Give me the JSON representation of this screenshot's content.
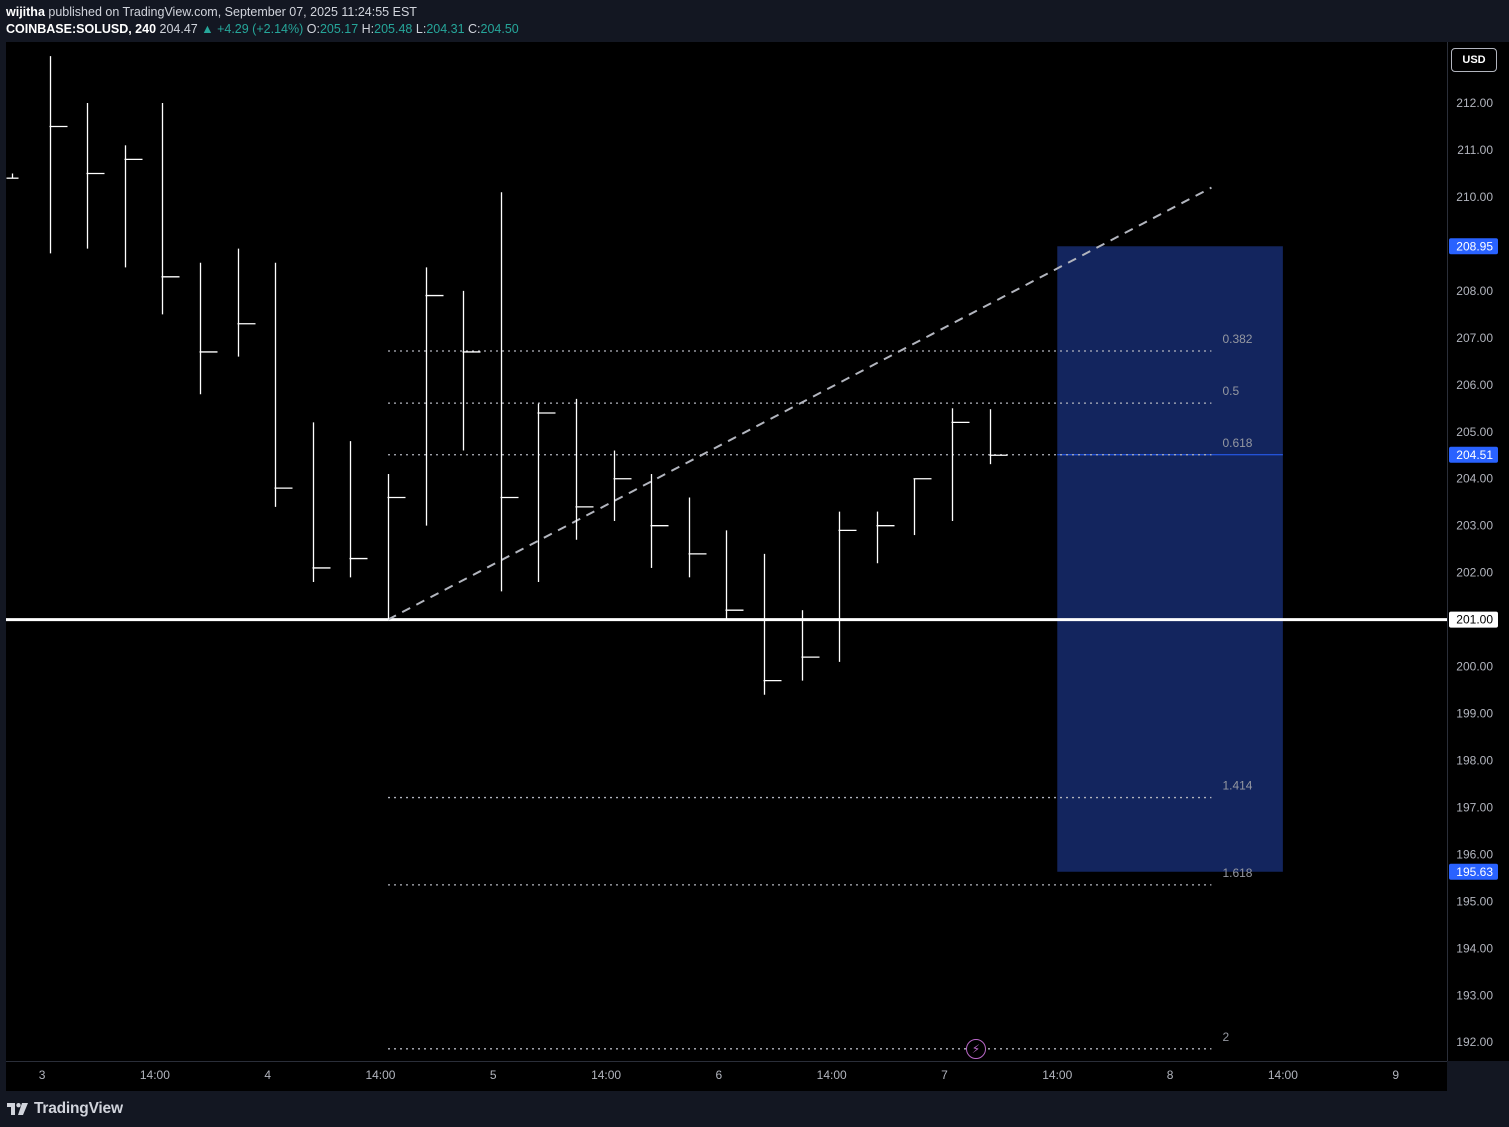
{
  "header": {
    "publisher": "wijitha",
    "published_text": "published on TradingView.com, September 07, 2025 11:24:55 EST",
    "symbol": "COINBASE:SOLUSD, 240",
    "last": "204.47",
    "change": "▲ +4.29 (+2.14%)",
    "open_label": "O:",
    "open": "205.17",
    "high_label": "H:",
    "high": "205.48",
    "low_label": "L:",
    "low": "204.31",
    "close_label": "C:",
    "close": "204.50"
  },
  "currency_button": "USD",
  "footer": {
    "brand": "TradingView"
  },
  "colors": {
    "background": "#000000",
    "bars": "#ffffff",
    "axis_text": "#b2b5be",
    "price_tag": "#2962ff",
    "zone_fill": "#13255e",
    "fib_text": "#9598a1",
    "accent_purple": "#ba68c8"
  },
  "icons": {
    "alert": "lightning-icon",
    "logo": "tradingview-logo-icon"
  },
  "chart_data": {
    "type": "ohlc",
    "timeframe": "240",
    "ylim": [
      191.6,
      213.3
    ],
    "y_ticks": [
      192,
      193,
      194,
      195,
      196,
      197,
      198,
      199,
      200,
      201,
      202,
      203,
      204,
      205,
      206,
      207,
      208,
      209,
      210,
      211,
      212,
      213
    ],
    "x_ticks": [
      {
        "bar": 0.8,
        "label": "3"
      },
      {
        "bar": 3.8,
        "label": "14:00"
      },
      {
        "bar": 6.8,
        "label": "4"
      },
      {
        "bar": 9.8,
        "label": "14:00"
      },
      {
        "bar": 12.8,
        "label": "5"
      },
      {
        "bar": 15.8,
        "label": "14:00"
      },
      {
        "bar": 18.8,
        "label": "6"
      },
      {
        "bar": 21.8,
        "label": "14:00"
      },
      {
        "bar": 24.8,
        "label": "7"
      },
      {
        "bar": 27.8,
        "label": "14:00"
      },
      {
        "bar": 30.8,
        "label": "8"
      },
      {
        "bar": 33.8,
        "label": "14:00"
      },
      {
        "bar": 36.8,
        "label": "9"
      }
    ],
    "bars": [
      {
        "o": 210.5,
        "h": 210.5,
        "l": 210.4,
        "c": 210.4
      },
      {
        "o": 211.5,
        "h": 213.0,
        "l": 208.8,
        "c": 211.5
      },
      {
        "o": 211.5,
        "h": 212.0,
        "l": 208.9,
        "c": 210.5
      },
      {
        "o": 210.8,
        "h": 211.1,
        "l": 208.5,
        "c": 210.8
      },
      {
        "o": 211.0,
        "h": 212.0,
        "l": 207.5,
        "c": 208.3
      },
      {
        "o": 208.3,
        "h": 208.6,
        "l": 205.8,
        "c": 206.7
      },
      {
        "o": 206.8,
        "h": 208.9,
        "l": 206.6,
        "c": 207.3
      },
      {
        "o": 207.3,
        "h": 208.6,
        "l": 203.4,
        "c": 203.8
      },
      {
        "o": 203.9,
        "h": 205.2,
        "l": 201.8,
        "c": 202.1
      },
      {
        "o": 202.1,
        "h": 204.8,
        "l": 201.9,
        "c": 202.3
      },
      {
        "o": 202.3,
        "h": 204.1,
        "l": 201.0,
        "c": 203.6
      },
      {
        "o": 203.6,
        "h": 208.5,
        "l": 203.0,
        "c": 207.9
      },
      {
        "o": 207.9,
        "h": 208.0,
        "l": 204.6,
        "c": 206.7
      },
      {
        "o": 206.7,
        "h": 210.1,
        "l": 201.6,
        "c": 203.6
      },
      {
        "o": 203.6,
        "h": 205.6,
        "l": 201.8,
        "c": 205.4
      },
      {
        "o": 205.4,
        "h": 205.7,
        "l": 202.7,
        "c": 203.4
      },
      {
        "o": 203.4,
        "h": 204.6,
        "l": 203.1,
        "c": 204.0
      },
      {
        "o": 204.0,
        "h": 204.1,
        "l": 202.1,
        "c": 203.0
      },
      {
        "o": 203.0,
        "h": 203.6,
        "l": 201.9,
        "c": 202.4
      },
      {
        "o": 202.4,
        "h": 202.9,
        "l": 201.0,
        "c": 201.2
      },
      {
        "o": 201.2,
        "h": 202.4,
        "l": 199.4,
        "c": 199.7
      },
      {
        "o": 199.7,
        "h": 201.2,
        "l": 199.7,
        "c": 200.2
      },
      {
        "o": 200.2,
        "h": 203.3,
        "l": 200.1,
        "c": 202.9
      },
      {
        "o": 202.9,
        "h": 203.3,
        "l": 202.2,
        "c": 203.0
      },
      {
        "o": 203.0,
        "h": 204.0,
        "l": 202.8,
        "c": 204.0
      },
      {
        "o": 204.0,
        "h": 205.5,
        "l": 203.1,
        "c": 205.2
      },
      {
        "o": 205.17,
        "h": 205.48,
        "l": 204.31,
        "c": 204.5
      }
    ],
    "horizontal_line": {
      "price": 201.0,
      "label": "201.00"
    },
    "trend_line": {
      "from": {
        "bar": 10,
        "price": 201.0
      },
      "to": {
        "bar": 31.9,
        "price": 210.2
      }
    },
    "zone": {
      "from_bar": 27.8,
      "to_bar": 33.8,
      "top": 208.95,
      "bottom": 195.63
    },
    "zone_mid_line": 204.51,
    "fib_levels": [
      {
        "label": "0.382",
        "price": 206.72
      },
      {
        "label": "0.5",
        "price": 205.61
      },
      {
        "label": "0.618",
        "price": 204.51
      },
      {
        "label": "1.414",
        "price": 197.21
      },
      {
        "label": "1.618",
        "price": 195.35
      },
      {
        "label": "2",
        "price": 191.86
      }
    ],
    "fib_range": {
      "from_bar": 10,
      "to_bar": 31.9
    },
    "price_tags": [
      {
        "price": 208.95,
        "label": "208.95"
      },
      {
        "price": 204.51,
        "label": "204.51"
      },
      {
        "price": 195.63,
        "label": "195.63"
      }
    ]
  }
}
